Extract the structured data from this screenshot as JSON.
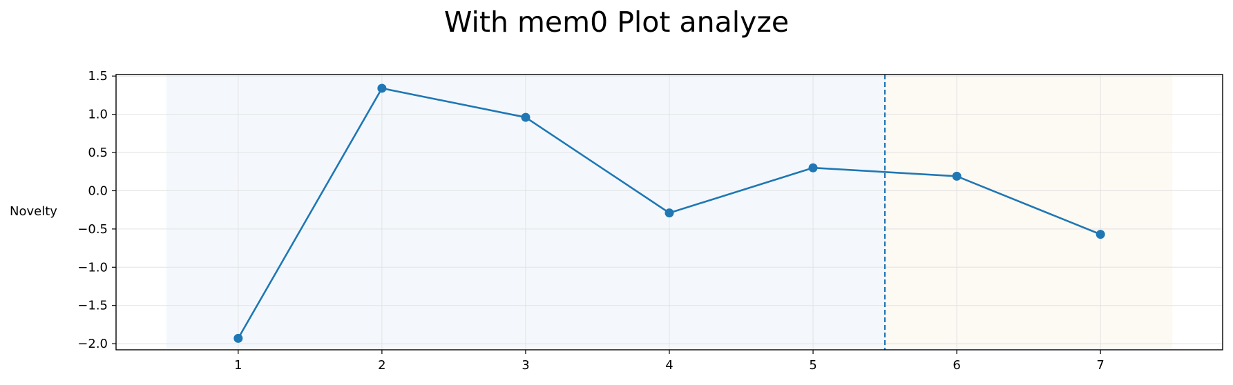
{
  "chart_data": {
    "type": "line",
    "title": "With mem0 Plot analyze",
    "xlabel": "",
    "ylabel": "Novelty",
    "x": [
      1,
      2,
      3,
      4,
      5,
      6,
      7
    ],
    "series": [
      {
        "values": [
          -1.93,
          1.34,
          0.96,
          -0.29,
          0.3,
          0.19,
          -0.57
        ]
      }
    ],
    "xlim": [
      0.15,
      7.85
    ],
    "ylim": [
      -2.08,
      1.52
    ],
    "xticks": [
      1,
      2,
      3,
      4,
      5,
      6,
      7
    ],
    "yticks": [
      1.5,
      1.0,
      0.5,
      0.0,
      -0.5,
      -1.0,
      -1.5,
      -2.0
    ],
    "ytick_labels": [
      "1.5",
      "1.0",
      "0.5",
      "0.0",
      "−0.5",
      "−1.0",
      "−1.5",
      "−2.0"
    ],
    "grid": true,
    "shaded_regions": [
      {
        "x_start": 0.5,
        "x_end": 5.5,
        "color": "#f4f8fc"
      },
      {
        "x_start": 5.5,
        "x_end": 7.5,
        "color": "#fdf9f3"
      }
    ],
    "vertical_line": {
      "x": 5.5,
      "style": "dashed"
    },
    "colors": {
      "series": "#1f77b4",
      "grid": "#e2e2e2",
      "axes": "#000000"
    }
  }
}
